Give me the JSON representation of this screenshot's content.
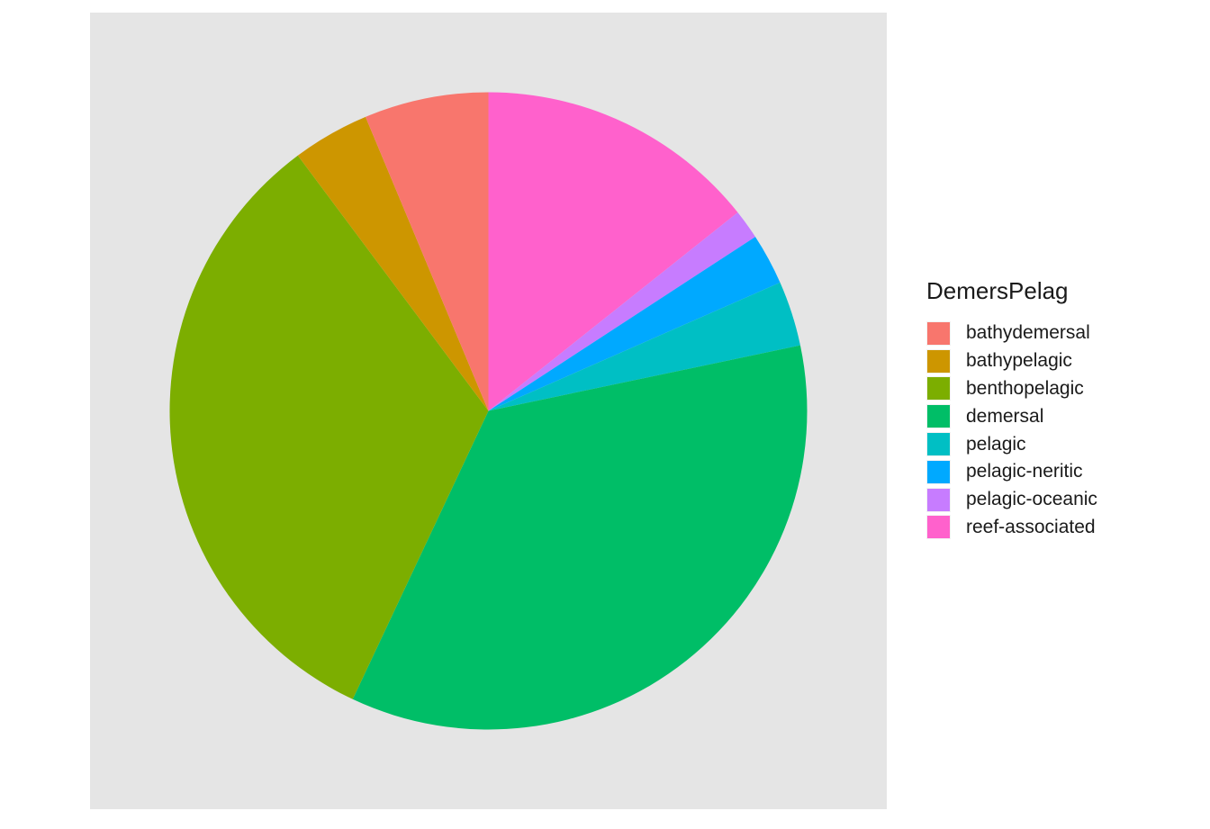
{
  "chart_data": {
    "type": "pie",
    "title": "",
    "legend_title": "DemersPelag",
    "legend_position": "right",
    "start": "top",
    "direction": "clockwise",
    "categories": [
      "bathydemersal",
      "bathypelagic",
      "benthopelagic",
      "demersal",
      "pelagic",
      "pelagic-neritic",
      "pelagic-oceanic",
      "reef-associated"
    ],
    "colors": [
      "#F8766D",
      "#CD9600",
      "#7CAE00",
      "#00BE67",
      "#00BFC4",
      "#00A9FF",
      "#C77CFF",
      "#FF61CC"
    ],
    "values": [
      6.3,
      3.9,
      32.8,
      35.3,
      3.3,
      2.6,
      1.5,
      14.3
    ],
    "order_from_top_clockwise": [
      "reef-associated",
      "pelagic-oceanic",
      "pelagic-neritic",
      "pelagic",
      "demersal",
      "benthopelagic",
      "bathypelagic",
      "bathydemersal"
    ]
  }
}
